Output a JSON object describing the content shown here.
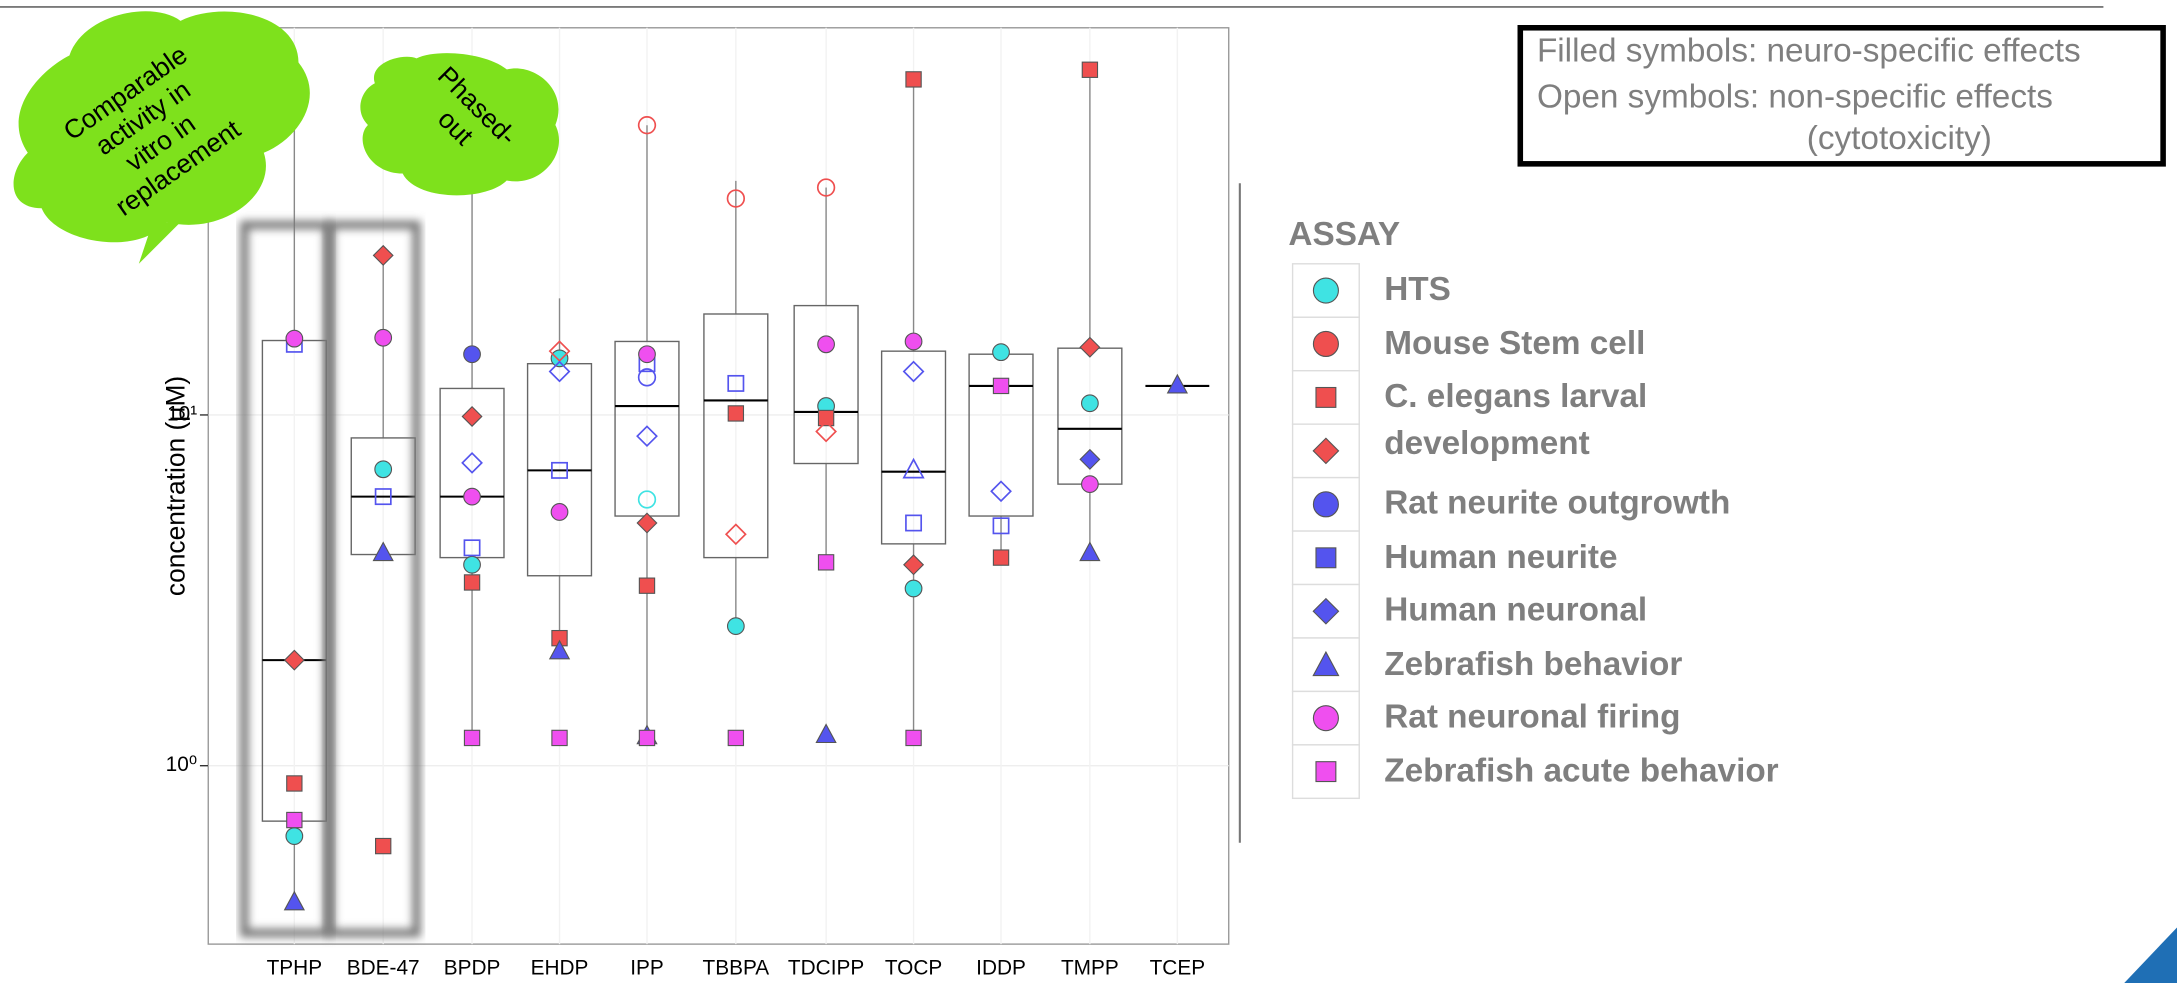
{
  "chart_data": {
    "type": "box",
    "ylabel": "concentration (μM)",
    "log_scale": true,
    "grid": true,
    "ylim": [
      0.31,
      127
    ],
    "yticks": [
      {
        "value": 1,
        "label": "10⁰"
      },
      {
        "value": 10,
        "label": "10¹"
      }
    ],
    "categories": [
      "TPHP",
      "BDE-47",
      "BPDP",
      "EHDP",
      "IPP",
      "TBBPA",
      "TDCIPP",
      "TOCP",
      "IDDP",
      "TMPP",
      "TCEP"
    ],
    "boxes": [
      {
        "low": 0.41,
        "q1": 0.695,
        "median": 2.0,
        "q3": 16.3,
        "high": 67
      },
      {
        "low": 4.0,
        "q1": 4.0,
        "median": 5.85,
        "q3": 8.6,
        "high": 28
      },
      {
        "low": 1.2,
        "q1": 3.92,
        "median": 5.85,
        "q3": 11.9,
        "high": 46.5
      },
      {
        "low": 2.31,
        "q1": 3.48,
        "median": 6.95,
        "q3": 14.0,
        "high": 21.5
      },
      {
        "low": 1.2,
        "q1": 5.15,
        "median": 10.6,
        "q3": 16.2,
        "high": 67
      },
      {
        "low": 2.5,
        "q1": 3.92,
        "median": 11.0,
        "q3": 19.4,
        "high": 46.5
      },
      {
        "low": 3.8,
        "q1": 7.27,
        "median": 10.2,
        "q3": 20.5,
        "high": 44.5
      },
      {
        "low": 1.2,
        "q1": 4.29,
        "median": 6.89,
        "q3": 15.2,
        "high": 90.5
      },
      {
        "low": 3.92,
        "q1": 5.15,
        "median": 12.1,
        "q3": 14.9,
        "high": 14.9
      },
      {
        "low": 4.06,
        "q1": 6.35,
        "median": 9.13,
        "q3": 15.5,
        "high": 96.4
      },
      {
        "low": 12.1,
        "q1": 12.1,
        "median": 12.1,
        "q3": 12.1,
        "high": 12.1
      }
    ],
    "legend_title": "ASSAY",
    "series": [
      {
        "name": "HTS",
        "color": "#3fe3e3",
        "marker": "circle",
        "values": [
          0.63,
          7.0,
          3.74,
          14.5,
          null,
          2.5,
          10.6,
          3.2,
          15.1,
          10.8,
          null
        ],
        "open": [
          null,
          null,
          null,
          null,
          5.74,
          null,
          null,
          null,
          null,
          null,
          null
        ]
      },
      {
        "name": "Mouse Stem cell",
        "color": "#ef4f4f",
        "marker": "circle",
        "values": [
          null,
          null,
          null,
          null,
          null,
          null,
          null,
          null,
          null,
          null,
          null
        ],
        "open": [
          null,
          null,
          null,
          null,
          67,
          41.4,
          44.5,
          null,
          null,
          null,
          null
        ]
      },
      {
        "name": "C. elegans larval development",
        "color": "#ef4f4f",
        "marker": "square",
        "values": [
          0.89,
          0.59,
          3.33,
          2.31,
          3.26,
          10.1,
          9.8,
          90.5,
          3.92,
          96.4,
          null
        ]
      },
      {
        "color": "#ef4f4f",
        "marker": "diamond",
        "values": [
          2.0,
          28.5,
          9.9,
          null,
          4.92,
          null,
          null,
          3.74,
          null,
          15.6,
          null
        ],
        "open": [
          null,
          null,
          null,
          15.2,
          null,
          4.57,
          8.97,
          null,
          null,
          null,
          null
        ]
      },
      {
        "name": "Rat neurite outgrowth",
        "color": "#5454ee",
        "marker": "circle",
        "values": [
          null,
          null,
          14.9,
          null,
          null,
          null,
          null,
          null,
          null,
          null,
          null
        ],
        "open": [
          null,
          null,
          null,
          null,
          12.8,
          null,
          null,
          null,
          null,
          null,
          null
        ]
      },
      {
        "name": "Human neurite",
        "color": "#5454ee",
        "marker": "square",
        "values": [
          null,
          null,
          null,
          null,
          null,
          null,
          null,
          null,
          null,
          null,
          null
        ],
        "open": [
          15.9,
          5.85,
          4.18,
          6.95,
          14.0,
          12.3,
          null,
          4.92,
          4.83,
          null,
          null
        ]
      },
      {
        "name": "Human neuronal",
        "color": "#5454ee",
        "marker": "diamond",
        "values": [
          null,
          null,
          null,
          null,
          null,
          null,
          null,
          null,
          null,
          7.47,
          null
        ],
        "open": [
          null,
          null,
          7.3,
          13.3,
          8.7,
          null,
          null,
          13.3,
          6.06,
          null,
          null
        ]
      },
      {
        "name": "Zebrafish behavior",
        "color": "#5454ee",
        "marker": "triangle",
        "values": [
          0.41,
          4.06,
          null,
          2.13,
          1.22,
          null,
          1.23,
          null,
          null,
          4.06,
          12.2
        ],
        "open": [
          null,
          null,
          null,
          null,
          null,
          null,
          null,
          7.0,
          null,
          null,
          null
        ]
      },
      {
        "name": "Rat neuronal firing",
        "color": "#ef4fef",
        "marker": "circle",
        "values": [
          16.5,
          16.6,
          5.85,
          5.29,
          14.9,
          null,
          15.9,
          16.2,
          null,
          6.35,
          null
        ]
      },
      {
        "name": "Zebrafish acute behavior",
        "color": "#ef4fef",
        "marker": "square",
        "values": [
          0.7,
          null,
          1.2,
          1.2,
          1.2,
          1.2,
          3.8,
          1.2,
          12.1,
          null,
          null
        ]
      }
    ],
    "notes": [
      "Filled symbols: neuro-specific effects",
      "Open symbols: non-specific effects",
      "(cytotoxicity)"
    ],
    "cloud_left": [
      "Comparable",
      "activity in",
      "vitro in",
      "replacement"
    ],
    "cloud_right": [
      "Phased-",
      "out"
    ]
  }
}
